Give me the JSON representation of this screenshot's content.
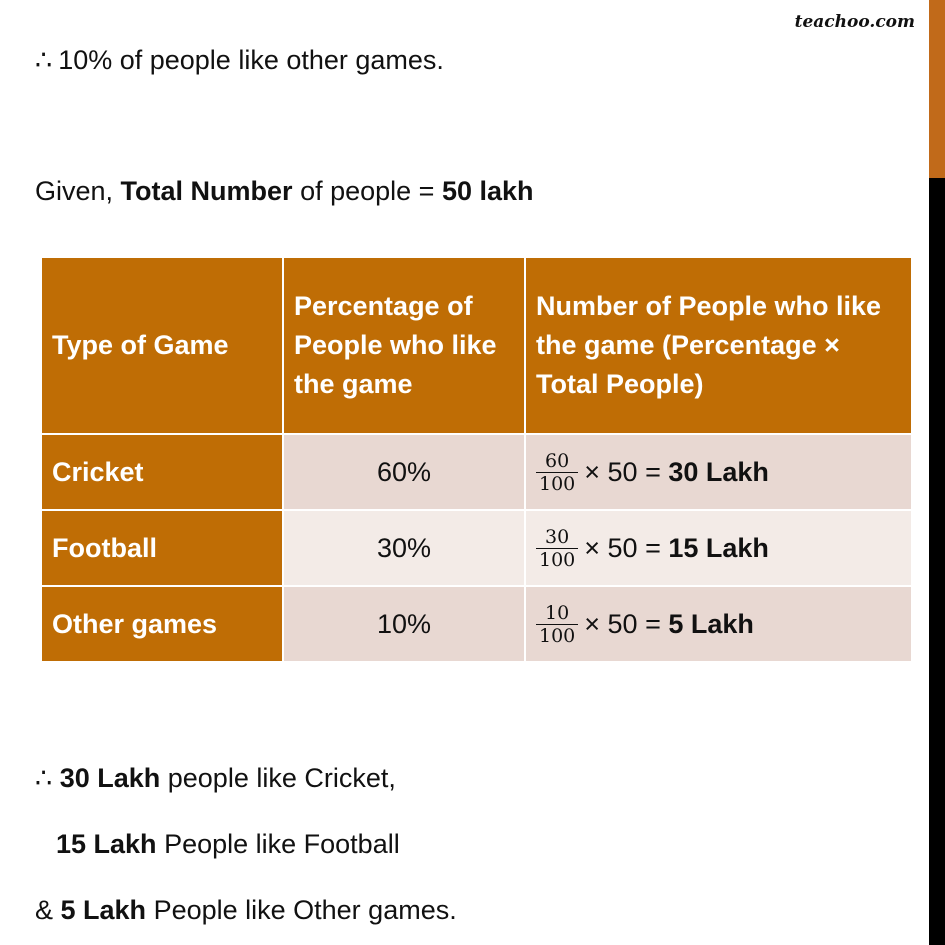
{
  "brand": "teachoo.com",
  "intro": {
    "therefore": "∴",
    "text": "10% of people like other games."
  },
  "given": {
    "prefix": "Given, ",
    "bold1": "Total Number",
    "middle": " of people = ",
    "bold2": "50 lakh"
  },
  "table": {
    "headers": [
      "Type of Game",
      "Percentage of People who like the game",
      "Number of People who like the game (Percentage × Total People)"
    ],
    "rows": [
      {
        "game": "Cricket",
        "percent": "60%",
        "numerator": "60",
        "denominator": "100",
        "expr": "× 50 = ",
        "result": "30 Lakh"
      },
      {
        "game": "Football",
        "percent": "30%",
        "numerator": "30",
        "denominator": "100",
        "expr": "× 50 = ",
        "result": "15 Lakh"
      },
      {
        "game": "Other games",
        "percent": "10%",
        "numerator": "10",
        "denominator": "100",
        "expr": "× 50 = ",
        "result": "5 Lakh"
      }
    ]
  },
  "conclusion": [
    {
      "prefix": "∴ ",
      "bold": "30 Lakh",
      "text": " people like Cricket,"
    },
    {
      "prefix": "",
      "bold": "15 Lakh",
      "text": " People like Football"
    },
    {
      "prefix": "& ",
      "bold": "5 Lakh",
      "text": " People like Other games."
    }
  ],
  "colors": {
    "header_bg": "#bf6d05",
    "cell_dark": "#e8d8d2",
    "cell_light": "#f3ebe7",
    "accent": "#c16a1a"
  }
}
